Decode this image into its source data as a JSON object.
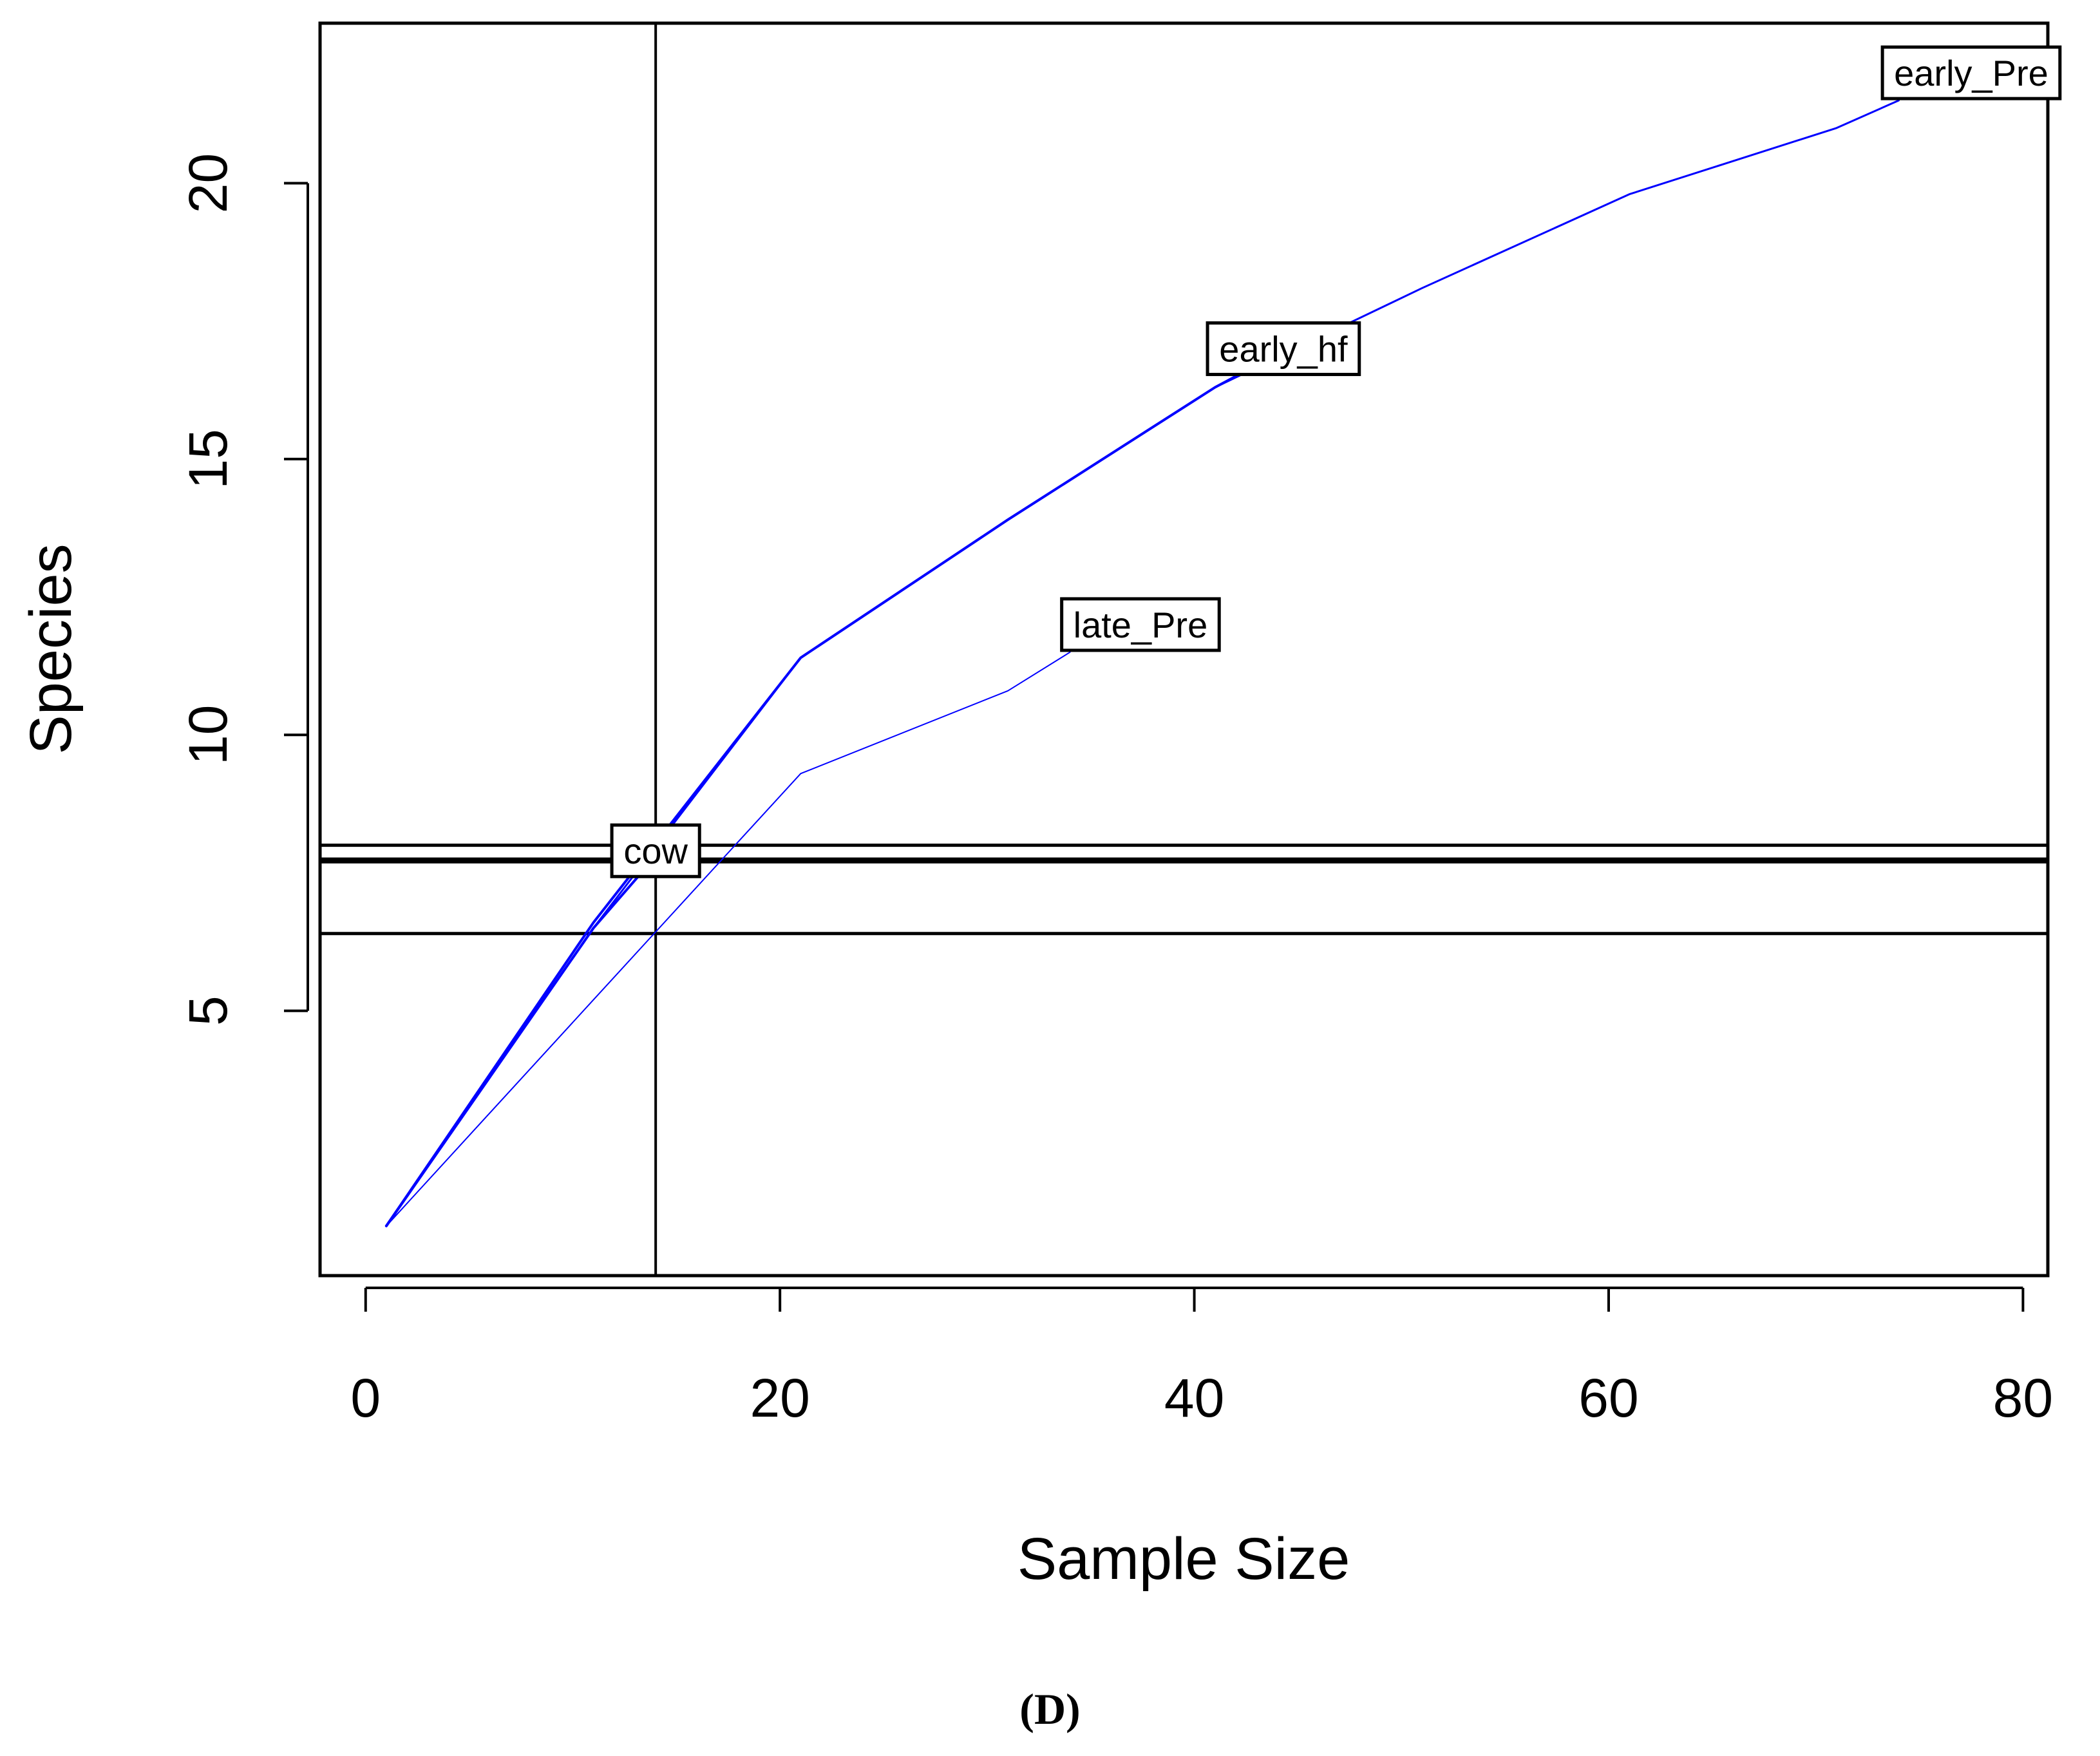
{
  "chart_data": {
    "type": "line",
    "xlabel": "Sample Size",
    "ylabel": "Species",
    "xlim": [
      -2.2,
      81.2
    ],
    "ylim": [
      0.2,
      22.9
    ],
    "x_ticks": [
      0,
      20,
      40,
      60,
      80
    ],
    "y_ticks": [
      5,
      10,
      15,
      20
    ],
    "grid": false,
    "legend": "none",
    "line_color": "#0000ff",
    "series": [
      {
        "name": "early_Pre",
        "x": [
          1,
          11,
          21,
          31,
          41,
          51,
          61,
          71,
          74
        ],
        "y": [
          1.1,
          6.5,
          11.4,
          13.9,
          16.3,
          18.1,
          19.8,
          21.0,
          21.5
        ],
        "width": 3
      },
      {
        "name": "early_hf",
        "x": [
          1,
          11,
          21,
          31,
          41,
          42
        ],
        "y": [
          1.1,
          6.6,
          11.4,
          13.9,
          16.3,
          16.5
        ],
        "width": 4
      },
      {
        "name": "late_Pre",
        "x": [
          1,
          11,
          21,
          31,
          34
        ],
        "y": [
          1.1,
          5.2,
          9.3,
          10.8,
          11.5
        ],
        "width": 2
      },
      {
        "name": "cow",
        "x": [
          1,
          11,
          14
        ],
        "y": [
          1.1,
          6.5,
          7.8
        ],
        "width": 4
      }
    ],
    "reference_lines": {
      "vertical_x": 14,
      "horizontal_y": [
        8.0,
        7.75,
        7.7,
        6.4
      ]
    },
    "labels": [
      {
        "text": "early_Pre",
        "x": 77.5,
        "y": 22.0
      },
      {
        "text": "early_hf",
        "x": 44.3,
        "y": 17.0
      },
      {
        "text": "late_Pre",
        "x": 37.4,
        "y": 12.0
      },
      {
        "text": "cow",
        "x": 14,
        "y": 7.9
      }
    ]
  },
  "caption": "(D)"
}
